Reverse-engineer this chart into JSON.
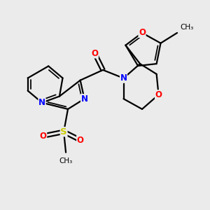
{
  "bg_color": "#ebebeb",
  "bond_color": "#000000",
  "bond_width": 1.6,
  "atom_colors": {
    "N": "#0000ff",
    "O": "#ff0000",
    "S": "#cccc00",
    "C": "#000000"
  },
  "font_size": 8.5,
  "figsize": [
    3.0,
    3.0
  ],
  "dpi": 100
}
